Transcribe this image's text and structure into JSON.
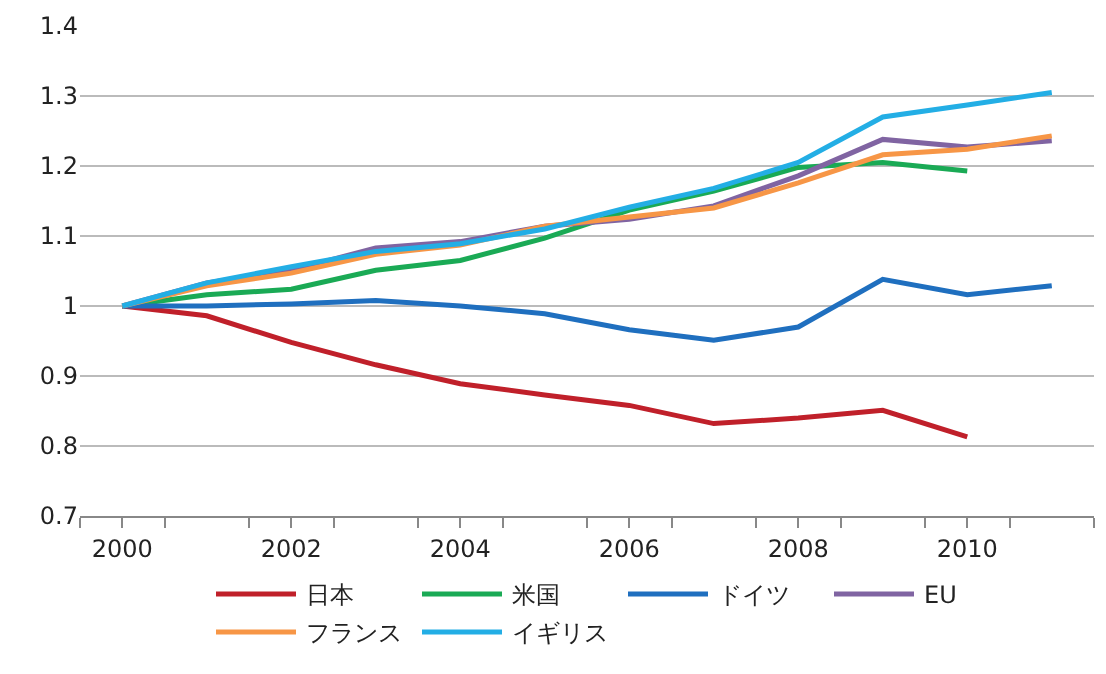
{
  "chart_data": {
    "type": "line",
    "x": [
      2000,
      2001,
      2002,
      2003,
      2004,
      2005,
      2006,
      2007,
      2008,
      2009,
      2010,
      2011
    ],
    "series": [
      {
        "name": "日本",
        "color": "#c0202a",
        "values": [
          1.0,
          0.986,
          0.948,
          0.916,
          0.889,
          0.873,
          0.858,
          0.832,
          0.84,
          0.851,
          0.813,
          null
        ]
      },
      {
        "name": "米国",
        "color": "#1aaa55",
        "values": [
          1.0,
          1.016,
          1.024,
          1.051,
          1.065,
          1.097,
          1.137,
          1.164,
          1.198,
          1.205,
          1.193,
          null
        ]
      },
      {
        "name": "ドイツ",
        "color": "#1f6fbf",
        "values": [
          1.0,
          1.0,
          1.003,
          1.008,
          1.0,
          0.989,
          0.966,
          0.951,
          0.97,
          1.038,
          1.016,
          1.029
        ]
      },
      {
        "name": "EU",
        "color": "#8064a2",
        "values": [
          1.0,
          1.033,
          1.051,
          1.083,
          1.092,
          1.114,
          1.124,
          1.143,
          1.186,
          1.238,
          1.227,
          1.236
        ]
      },
      {
        "name": "フランス",
        "color": "#f79646",
        "values": [
          1.0,
          1.029,
          1.047,
          1.074,
          1.087,
          1.114,
          1.127,
          1.14,
          1.176,
          1.216,
          1.224,
          1.243
        ]
      },
      {
        "name": "イギリス",
        "color": "#23aee5",
        "values": [
          1.0,
          1.033,
          1.056,
          1.078,
          1.089,
          1.11,
          1.141,
          1.168,
          1.205,
          1.27,
          1.287,
          1.305
        ]
      }
    ],
    "xlim": [
      1999.5,
      2011.5
    ],
    "xticks": [
      2000,
      2002,
      2004,
      2006,
      2008,
      2010,
      {
        "value": 1999.5,
        "label": null
      },
      {
        "value": 2000.5,
        "label": null
      },
      {
        "value": 2001.5,
        "label": null
      },
      {
        "value": 2002.5,
        "label": null
      },
      {
        "value": 2003.5,
        "label": null
      },
      {
        "value": 2004.5,
        "label": null
      },
      {
        "value": 2005.5,
        "label": null
      },
      {
        "value": 2006.5,
        "label": null
      },
      {
        "value": 2007.5,
        "label": null
      },
      {
        "value": 2008.5,
        "label": null
      },
      {
        "value": 2009.5,
        "label": null
      },
      {
        "value": 2010.5,
        "label": null
      },
      {
        "value": 2011.5,
        "label": null
      }
    ],
    "ylim": [
      0.7,
      1.4
    ],
    "yticks": [
      0.7,
      0.8,
      0.9,
      1,
      1.1,
      1.2,
      1.3,
      1.4
    ],
    "grid": "y",
    "legend": "bottom",
    "marker": "none",
    "line_style": "solid"
  }
}
